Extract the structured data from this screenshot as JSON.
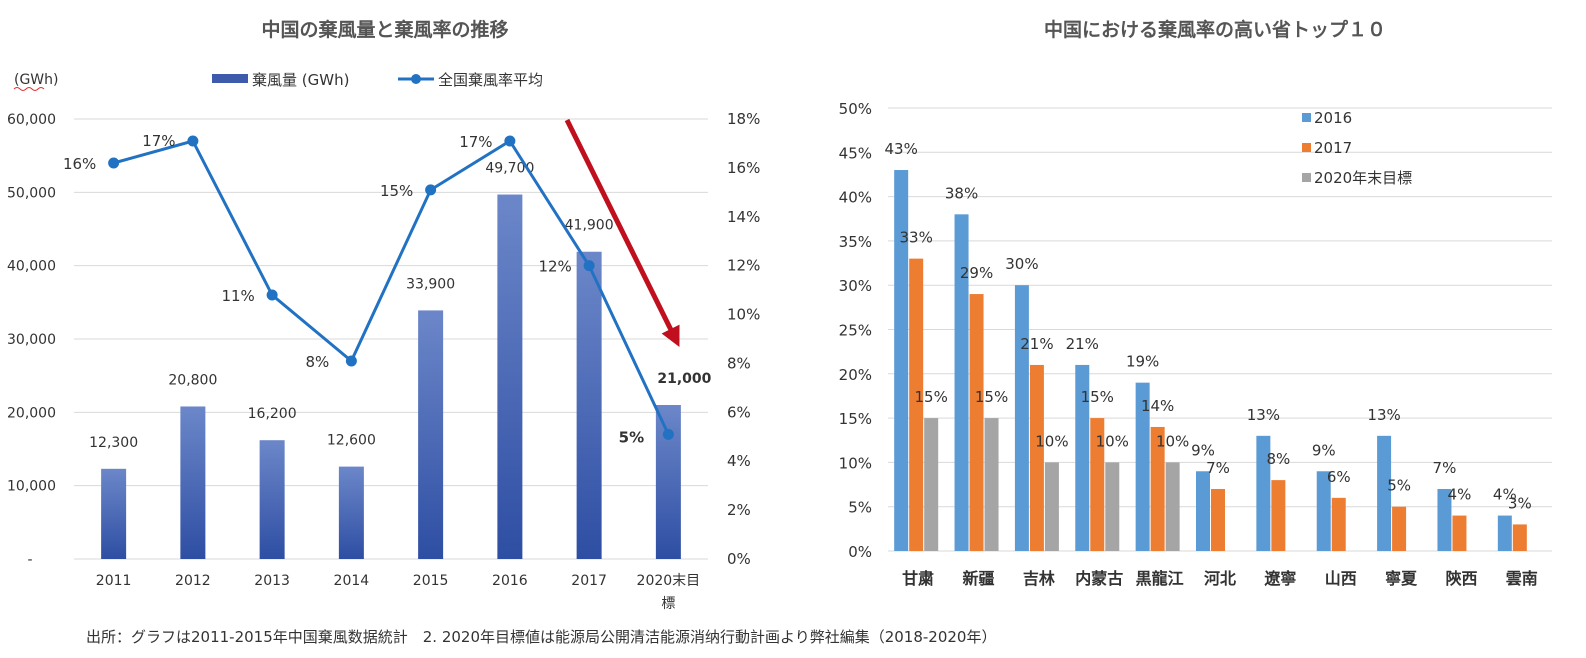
{
  "chart_data": [
    {
      "type": "bar",
      "title": "中国の棄風量と棄風率の推移",
      "y_unit_label": "(GWh)",
      "categories": [
        "2011",
        "2012",
        "2013",
        "2014",
        "2015",
        "2016",
        "2017",
        "2020末目標"
      ],
      "series": [
        {
          "name": "棄風量 (GWh)",
          "type": "bar",
          "axis": "left",
          "values": [
            12300,
            20800,
            16200,
            12600,
            33900,
            49700,
            41900,
            21000
          ],
          "labels": [
            "12,300",
            "20,800",
            "16,200",
            "12,600",
            "33,900",
            "49,700",
            "41,900",
            "21,000"
          ]
        },
        {
          "name": "全国棄風率平均",
          "type": "line",
          "axis": "right",
          "values": [
            16.2,
            17.1,
            10.8,
            8.1,
            15.1,
            17.1,
            12.0,
            5.1
          ],
          "labels": [
            "16%",
            "17%",
            "11%",
            "8%",
            "15%",
            "17%",
            "12%",
            "5%"
          ]
        }
      ],
      "y_left": {
        "min": 0,
        "max": 60000,
        "ticks": [
          "-",
          "10,000",
          "20,000",
          "30,000",
          "40,000",
          "50,000",
          "60,000"
        ]
      },
      "y_right": {
        "min": 0,
        "max": 18,
        "ticks": [
          "0%",
          "2%",
          "4%",
          "6%",
          "8%",
          "10%",
          "12%",
          "14%",
          "16%",
          "18%"
        ]
      },
      "annotation": "downward trend arrow from 2017 toward 2020 target",
      "colors": {
        "bar": "#3d5aab",
        "line": "#2272c3",
        "arrow": "#c0101e"
      },
      "legend_placement": "top",
      "grid": true
    },
    {
      "type": "bar",
      "title": "中国における棄風率の高い省トップ１０",
      "categories": [
        "甘粛",
        "新疆",
        "吉林",
        "内蒙古",
        "黒龍江",
        "河北",
        "遼寧",
        "山西",
        "寧夏",
        "陝西",
        "雲南"
      ],
      "series": [
        {
          "name": "2016",
          "color": "#5b9bd5",
          "values": [
            43,
            38,
            30,
            21,
            19,
            9,
            13,
            9,
            13,
            7,
            4
          ],
          "labels": [
            "43%",
            "38%",
            "30%",
            "21%",
            "19%",
            "9%",
            "13%",
            "9%",
            "13%",
            "7%",
            "4%"
          ]
        },
        {
          "name": "2017",
          "color": "#ed7d31",
          "values": [
            33,
            29,
            21,
            15,
            14,
            7,
            8,
            6,
            5,
            4,
            3
          ],
          "labels": [
            "33%",
            "29%",
            "21%",
            "15%",
            "14%",
            "7%",
            "8%",
            "6%",
            "5%",
            "4%",
            "3%"
          ]
        },
        {
          "name": "2020年末目標",
          "color": "#a5a5a5",
          "values": [
            15,
            15,
            10,
            10,
            10,
            null,
            null,
            null,
            null,
            null,
            null
          ],
          "labels": [
            "15%",
            "15%",
            "10%",
            "10%",
            "10%",
            "",
            "",
            "",
            "",
            "",
            ""
          ]
        }
      ],
      "y": {
        "min": 0,
        "max": 50,
        "ticks": [
          "0%",
          "5%",
          "10%",
          "15%",
          "20%",
          "25%",
          "30%",
          "35%",
          "40%",
          "45%",
          "50%"
        ]
      },
      "legend_placement": "top-right",
      "grid": true
    }
  ],
  "source": "出所：グラフは2011-2015年中国棄風数据統計　2. 2020年目標値は能源局公開清洁能源消纳行動計画より弊社編集（2018-2020年）"
}
